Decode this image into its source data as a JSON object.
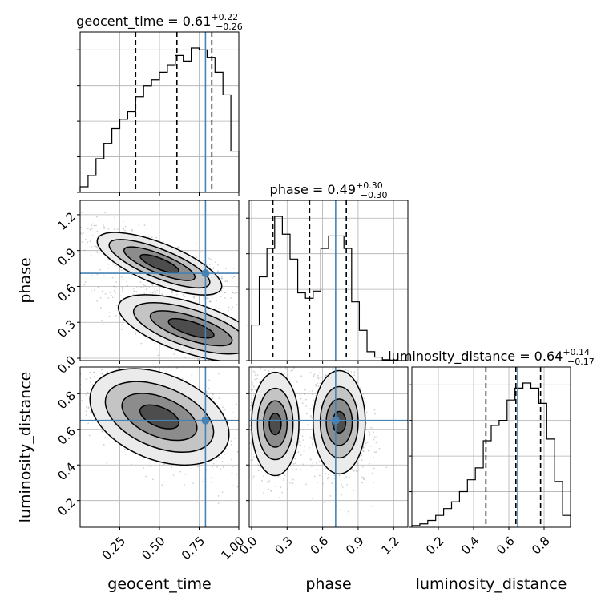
{
  "chart_data": {
    "type": "corner",
    "parameters": [
      "geocent_time",
      "phase",
      "luminosity_distance"
    ],
    "axis_labels": {
      "x": [
        "geocent_time",
        "phase",
        "luminosity_distance"
      ],
      "y_row2": "phase",
      "y_row3": "luminosity_distance"
    },
    "truths": {
      "geocent_time": 0.79,
      "phase": 0.71,
      "luminosity_distance": 0.65
    },
    "truth_color": "#4682b4",
    "ranges": {
      "geocent_time": [
        0.0,
        1.0
      ],
      "phase": [
        -0.02,
        1.32
      ],
      "luminosity_distance": [
        0.05,
        0.95
      ]
    },
    "ticks": {
      "geocent_time": {
        "values": [
          0.25,
          0.5,
          0.75,
          1.0
        ],
        "labels": [
          "0.25",
          "0.50",
          "0.75",
          "1.00"
        ]
      },
      "phase": {
        "values": [
          0.0,
          0.3,
          0.6,
          0.9,
          1.2
        ],
        "labels": [
          "0.0",
          "0.3",
          "0.6",
          "0.9",
          "1.2"
        ]
      },
      "luminosity_distance": {
        "values": [
          0.2,
          0.4,
          0.6,
          0.8
        ],
        "labels": [
          "0.2",
          "0.4",
          "0.6",
          "0.8"
        ]
      }
    },
    "marginals": [
      {
        "name": "geocent_time",
        "title": {
          "main": "geocent_time = 0.61",
          "sup": "+0.22",
          "sub": "−0.26"
        },
        "quantiles": [
          0.35,
          0.61,
          0.83
        ],
        "bin_edges": [
          0,
          0.05,
          0.1,
          0.15,
          0.2,
          0.25,
          0.3,
          0.35,
          0.4,
          0.45,
          0.5,
          0.55,
          0.6,
          0.65,
          0.7,
          0.75,
          0.8,
          0.85,
          0.9,
          0.95,
          1.0
        ],
        "counts": [
          3,
          9,
          18,
          26,
          34,
          39,
          43,
          51,
          57,
          60,
          64,
          68,
          73,
          70,
          77,
          76,
          72,
          64,
          52,
          22
        ]
      },
      {
        "name": "phase",
        "title": {
          "main": "phase = 0.49",
          "sup": "+0.30",
          "sub": "−0.30"
        },
        "quantiles": [
          0.18,
          0.49,
          0.8
        ],
        "bin_edges": [
          0,
          0.065,
          0.13,
          0.195,
          0.26,
          0.325,
          0.39,
          0.455,
          0.52,
          0.585,
          0.65,
          0.715,
          0.78,
          0.845,
          0.91,
          0.975,
          1.04,
          1.105,
          1.17,
          1.235,
          1.3
        ],
        "counts": [
          20,
          47,
          63,
          81,
          71,
          57,
          38,
          35,
          39,
          63,
          70,
          70,
          63,
          33,
          17,
          5,
          2,
          0.5,
          0.3,
          0
        ]
      },
      {
        "name": "luminosity_distance",
        "title": {
          "main": "luminosity_distance = 0.64",
          "sup": "+0.14",
          "sub": "−0.17"
        },
        "quantiles": [
          0.47,
          0.64,
          0.78
        ],
        "bin_edges": [
          0.05,
          0.095,
          0.14,
          0.185,
          0.23,
          0.275,
          0.32,
          0.365,
          0.41,
          0.455,
          0.5,
          0.545,
          0.59,
          0.635,
          0.68,
          0.725,
          0.77,
          0.815,
          0.86,
          0.905,
          0.95
        ],
        "counts": [
          1,
          2,
          4,
          7,
          11,
          15,
          21,
          28,
          35,
          51,
          60,
          63,
          75,
          82,
          85,
          82,
          73,
          52,
          27,
          7
        ]
      }
    ],
    "joint": [
      {
        "x": "geocent_time",
        "y": "phase",
        "modes": [
          {
            "cx": 0.5,
            "cy": 0.79,
            "levels": [
              [
                0.42,
                0.17
              ],
              [
                0.34,
                0.12
              ],
              [
                0.24,
                0.08
              ],
              [
                0.13,
                0.045
              ]
            ]
          },
          {
            "cx": 0.7,
            "cy": 0.25,
            "levels": [
              [
                0.48,
                0.21
              ],
              [
                0.38,
                0.155
              ],
              [
                0.27,
                0.1
              ],
              [
                0.15,
                0.055
              ]
            ]
          }
        ],
        "spread": [
          0.48,
          0.9
        ]
      },
      {
        "x": "geocent_time",
        "y": "luminosity_distance",
        "modes": [
          {
            "cx": 0.5,
            "cy": 0.67,
            "levels": [
              [
                0.46,
                0.24
              ],
              [
                0.36,
                0.17
              ],
              [
                0.25,
                0.11
              ],
              [
                0.13,
                0.055
              ]
            ]
          }
        ],
        "spread": [
          0.5,
          0.32
        ]
      },
      {
        "x": "phase",
        "y": "luminosity_distance",
        "modes": [
          {
            "cx": 0.2,
            "cy": 0.63,
            "levels": [
              [
                0.2,
                0.29
              ],
              [
                0.15,
                0.2
              ],
              [
                0.1,
                0.13
              ],
              [
                0.05,
                0.06
              ]
            ]
          },
          {
            "cx": 0.74,
            "cy": 0.64,
            "levels": [
              [
                0.22,
                0.29
              ],
              [
                0.16,
                0.2
              ],
              [
                0.11,
                0.13
              ],
              [
                0.055,
                0.06
              ]
            ]
          }
        ],
        "spread": [
          0.55,
          0.32
        ]
      }
    ]
  }
}
